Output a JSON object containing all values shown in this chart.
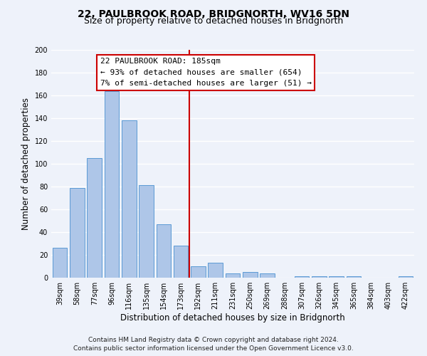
{
  "title": "22, PAULBROOK ROAD, BRIDGNORTH, WV16 5DN",
  "subtitle": "Size of property relative to detached houses in Bridgnorth",
  "xlabel": "Distribution of detached houses by size in Bridgnorth",
  "ylabel": "Number of detached properties",
  "bar_labels": [
    "39sqm",
    "58sqm",
    "77sqm",
    "96sqm",
    "116sqm",
    "135sqm",
    "154sqm",
    "173sqm",
    "192sqm",
    "211sqm",
    "231sqm",
    "250sqm",
    "269sqm",
    "288sqm",
    "307sqm",
    "326sqm",
    "345sqm",
    "365sqm",
    "384sqm",
    "403sqm",
    "422sqm"
  ],
  "bar_values": [
    26,
    79,
    105,
    164,
    138,
    81,
    47,
    28,
    10,
    13,
    4,
    5,
    4,
    0,
    1,
    1,
    1,
    1,
    0,
    0,
    1
  ],
  "bar_color": "#aec6e8",
  "bar_edge_color": "#5b9bd5",
  "vline_color": "#cc0000",
  "vline_pos": 7.5,
  "ylim": [
    0,
    200
  ],
  "yticks": [
    0,
    20,
    40,
    60,
    80,
    100,
    120,
    140,
    160,
    180,
    200
  ],
  "annotation_title": "22 PAULBROOK ROAD: 185sqm",
  "annotation_line1": "← 93% of detached houses are smaller (654)",
  "annotation_line2": "7% of semi-detached houses are larger (51) →",
  "annotation_box_facecolor": "#ffffff",
  "annotation_box_edgecolor": "#cc0000",
  "footer_line1": "Contains HM Land Registry data © Crown copyright and database right 2024.",
  "footer_line2": "Contains public sector information licensed under the Open Government Licence v3.0.",
  "bg_color": "#eef2fa",
  "plot_bg_color": "#eef2fa",
  "grid_color": "#ffffff",
  "title_fontsize": 10,
  "subtitle_fontsize": 9,
  "axis_label_fontsize": 8.5,
  "tick_fontsize": 7,
  "annotation_title_fontsize": 8,
  "annotation_body_fontsize": 8,
  "footer_fontsize": 6.5
}
